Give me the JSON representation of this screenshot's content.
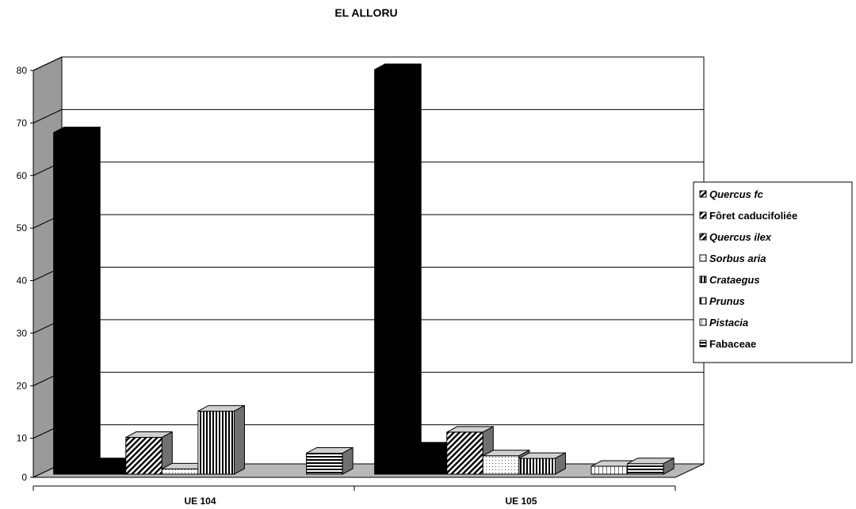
{
  "chart_data": {
    "type": "bar",
    "title": "EL ALLORU",
    "xlabel": "",
    "ylabel": "",
    "categories": [
      "UE 104",
      "UE 105"
    ],
    "ylim": [
      0,
      80
    ],
    "yticks": [
      "0",
      "10",
      "20",
      "30",
      "40",
      "50",
      "60",
      "70",
      "80"
    ],
    "three_d": true,
    "grid": true,
    "legend_position": "right",
    "series": [
      {
        "name": "Quercus fc",
        "italic": true,
        "pattern": "solid-black",
        "values": [
          65,
          77
        ]
      },
      {
        "name": "Fôret caducifoliée",
        "italic": false,
        "pattern": "solid-black",
        "values": [
          2,
          5
        ]
      },
      {
        "name": "Quercus ilex",
        "italic": true,
        "pattern": "diagonal-hatch",
        "values": [
          7,
          8
        ]
      },
      {
        "name": "Sorbus aria",
        "italic": true,
        "pattern": "dots",
        "values": [
          1,
          3.5
        ]
      },
      {
        "name": "Crataegus",
        "italic": true,
        "pattern": "vertical-lines",
        "values": [
          12,
          3
        ]
      },
      {
        "name": "Prunus",
        "italic": true,
        "pattern": "half-black",
        "values": [
          0,
          0
        ]
      },
      {
        "name": "Pistacia",
        "italic": true,
        "pattern": "light-vertical",
        "values": [
          0,
          1.5
        ]
      },
      {
        "name": "Fabaceae",
        "italic": false,
        "pattern": "horizontal-lines",
        "values": [
          4,
          2
        ]
      }
    ]
  }
}
